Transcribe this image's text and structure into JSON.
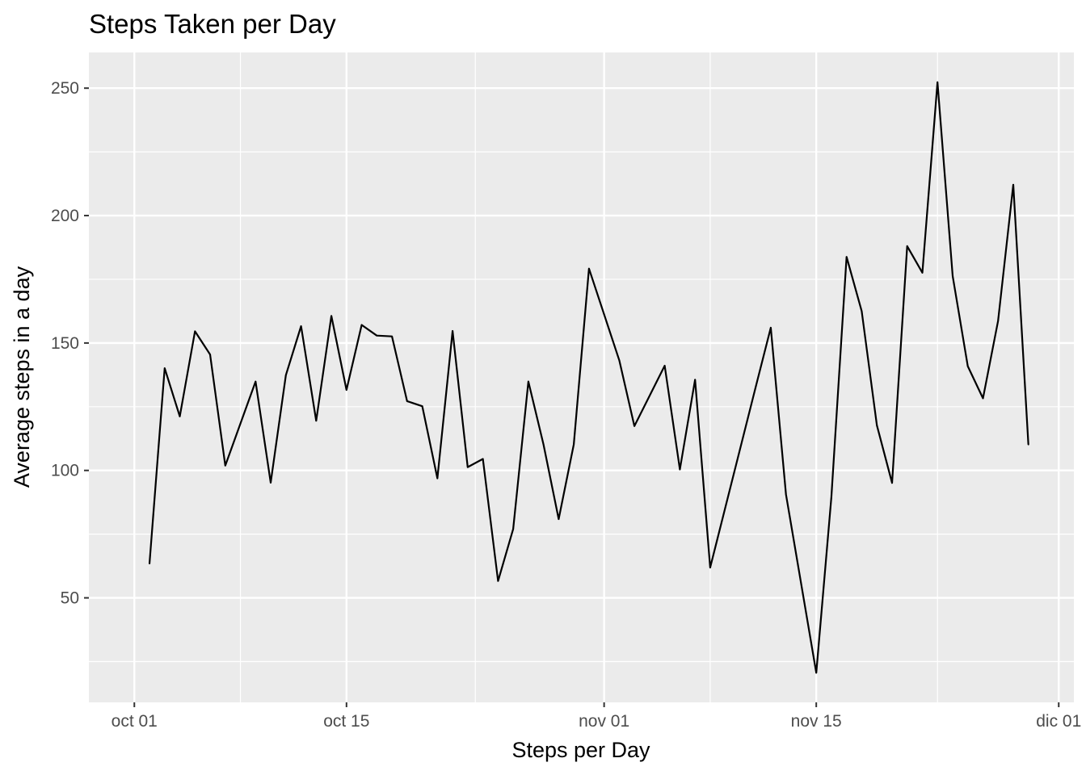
{
  "chart_data": {
    "type": "line",
    "title": "Steps Taken per Day",
    "xlabel": "Steps per Day",
    "ylabel": "Average steps in a day",
    "x_ticks": [
      "oct 01",
      "oct 15",
      "nov 01",
      "nov 15",
      "dic 01"
    ],
    "y_ticks": [
      "50",
      "100",
      "150",
      "200",
      "250"
    ],
    "xlim": [
      "2012-09-28",
      "2012-12-02"
    ],
    "ylim": [
      9,
      264
    ],
    "grid": true,
    "legend": "none",
    "colors": {
      "panel": "#ebebeb",
      "grid": "#ffffff",
      "line": "#000000"
    },
    "series": [
      {
        "x": [
          "2012-10-02",
          "2012-10-03",
          "2012-10-04",
          "2012-10-05",
          "2012-10-06",
          "2012-10-07",
          "2012-10-09",
          "2012-10-10",
          "2012-10-11",
          "2012-10-12",
          "2012-10-13",
          "2012-10-14",
          "2012-10-15",
          "2012-10-16",
          "2012-10-17",
          "2012-10-18",
          "2012-10-19",
          "2012-10-20",
          "2012-10-21",
          "2012-10-22",
          "2012-10-23",
          "2012-10-24",
          "2012-10-25",
          "2012-10-26",
          "2012-10-27",
          "2012-10-28",
          "2012-10-29",
          "2012-10-30",
          "2012-10-31",
          "2012-11-02",
          "2012-11-03",
          "2012-11-05",
          "2012-11-06",
          "2012-11-07",
          "2012-11-08",
          "2012-11-11",
          "2012-11-12",
          "2012-11-13",
          "2012-11-15",
          "2012-11-16",
          "2012-11-17",
          "2012-11-18",
          "2012-11-19",
          "2012-11-20",
          "2012-11-21",
          "2012-11-22",
          "2012-11-23",
          "2012-11-24",
          "2012-11-25",
          "2012-11-26",
          "2012-11-27",
          "2012-11-28",
          "2012-11-29"
        ],
        "values": [
          63.4,
          140.1,
          121.2,
          154.6,
          145.5,
          101.9,
          134.9,
          95.2,
          137.4,
          156.6,
          119.5,
          160.6,
          131.6,
          157.1,
          152.9,
          152.6,
          127.2,
          125.2,
          96.9,
          154.7,
          101.3,
          104.5,
          56.6,
          77.0,
          134.9,
          110.2,
          80.9,
          110.2,
          179.2,
          143.2,
          117.4,
          141.1,
          100.4,
          135.6,
          61.9,
          132.7,
          156.0,
          90.6,
          20.6,
          89.6,
          183.8,
          162.5,
          117.7,
          95.1,
          188.0,
          177.6,
          252.3,
          176.3,
          140.9,
          128.3,
          158.7,
          212.1,
          110.1
        ]
      }
    ]
  }
}
